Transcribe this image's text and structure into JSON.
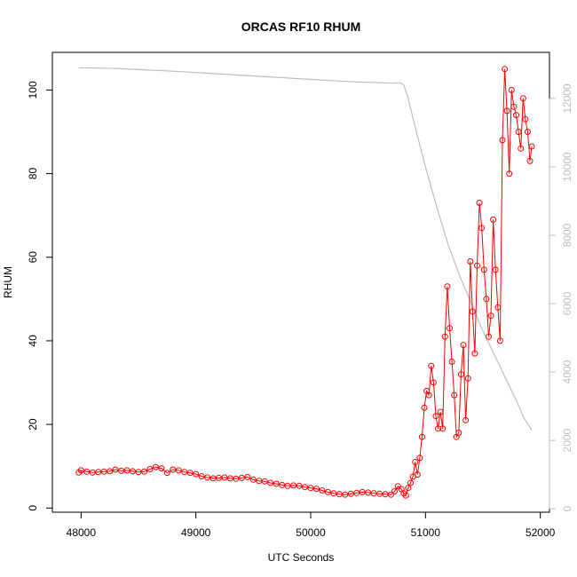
{
  "chart_data": {
    "type": "line",
    "title": "ORCAS RF10 RHUM",
    "xlabel": "UTC Seconds",
    "ylabel": "RHUM",
    "xlim": [
      47750,
      52080
    ],
    "ylim": [
      -1,
      109
    ],
    "y2lim": [
      -100,
      13350
    ],
    "x_ticks": [
      48000,
      49000,
      50000,
      51000,
      52000
    ],
    "y_ticks": [
      0,
      20,
      40,
      60,
      80,
      100
    ],
    "y2_ticks": [
      0,
      2000,
      4000,
      6000,
      8000,
      10000,
      12000
    ],
    "colors": {
      "rhum": "#ff0000",
      "altitude": "#bebebe",
      "axis": "#000000",
      "right_axis": "#bebebe"
    },
    "series": [
      {
        "role": "primary",
        "style": "line+circles",
        "x": [
          47980,
          48000,
          48050,
          48100,
          48150,
          48200,
          48250,
          48300,
          48350,
          48400,
          48450,
          48500,
          48550,
          48600,
          48650,
          48700,
          48750,
          48800,
          48850,
          48900,
          48950,
          49000,
          49050,
          49100,
          49150,
          49200,
          49250,
          49300,
          49350,
          49400,
          49450,
          49500,
          49550,
          49600,
          49650,
          49700,
          49750,
          49800,
          49850,
          49900,
          49950,
          50000,
          50050,
          50100,
          50150,
          50200,
          50250,
          50300,
          50350,
          50400,
          50450,
          50500,
          50550,
          50600,
          50650,
          50700,
          50730,
          50760,
          50790,
          50810,
          50830,
          50850,
          50870,
          50890,
          50910,
          50930,
          50950,
          50970,
          50990,
          51010,
          51030,
          51050,
          51070,
          51090,
          51110,
          51130,
          51150,
          51170,
          51190,
          51210,
          51230,
          51250,
          51270,
          51290,
          51310,
          51330,
          51350,
          51370,
          51390,
          51410,
          51430,
          51450,
          51470,
          51490,
          51510,
          51530,
          51550,
          51570,
          51590,
          51610,
          51630,
          51650,
          51670,
          51690,
          51710,
          51730,
          51750,
          51770,
          51790,
          51810,
          51830,
          51850,
          51870,
          51890,
          51910,
          51925
        ],
        "values": [
          8.5,
          9.0,
          8.7,
          8.5,
          8.6,
          8.7,
          8.8,
          9.2,
          8.9,
          9.0,
          8.8,
          8.6,
          8.7,
          9.3,
          9.8,
          9.5,
          8.4,
          9.2,
          9.0,
          8.6,
          8.4,
          8.1,
          7.6,
          7.3,
          7.1,
          7.2,
          7.3,
          7.1,
          7.0,
          7.2,
          7.4,
          6.8,
          6.5,
          6.4,
          6.0,
          5.8,
          5.5,
          5.3,
          5.4,
          5.3,
          5.0,
          4.8,
          4.6,
          4.2,
          3.8,
          3.5,
          3.3,
          3.2,
          3.4,
          3.6,
          3.8,
          3.7,
          3.5,
          3.4,
          3.3,
          3.2,
          4.0,
          5.2,
          4.5,
          3.5,
          3.0,
          4.8,
          6.0,
          7.5,
          11.0,
          8.0,
          12.0,
          17.0,
          24.0,
          28.0,
          27.0,
          34.0,
          30.0,
          22.0,
          19.0,
          23.0,
          19.0,
          41.0,
          53.0,
          43.0,
          35.0,
          27.0,
          17.0,
          18.0,
          32.0,
          39.0,
          21.0,
          31.0,
          59.0,
          47.0,
          37.0,
          58.0,
          73.0,
          67.0,
          57.0,
          50.0,
          41.0,
          46.0,
          69.0,
          57.0,
          48.0,
          40.0,
          88.0,
          105.0,
          95.0,
          80.0,
          100.0,
          96.0,
          94.0,
          90.0,
          86.0,
          98.0,
          93.0,
          90.0,
          83.0,
          86.5
        ]
      },
      {
        "role": "secondary",
        "style": "line",
        "x": [
          47980,
          48300,
          48800,
          49300,
          49800,
          50300,
          50700,
          50780,
          50810,
          50850,
          50900,
          51000,
          51100,
          51200,
          51300,
          51400,
          51500,
          51600,
          51700,
          51800,
          51850,
          51925
        ],
        "values": [
          12900,
          12880,
          12800,
          12700,
          12600,
          12500,
          12450,
          12460,
          12400,
          12000,
          11300,
          10000,
          8800,
          7700,
          6800,
          6000,
          5200,
          4500,
          3800,
          3100,
          2700,
          2300
        ]
      }
    ]
  }
}
